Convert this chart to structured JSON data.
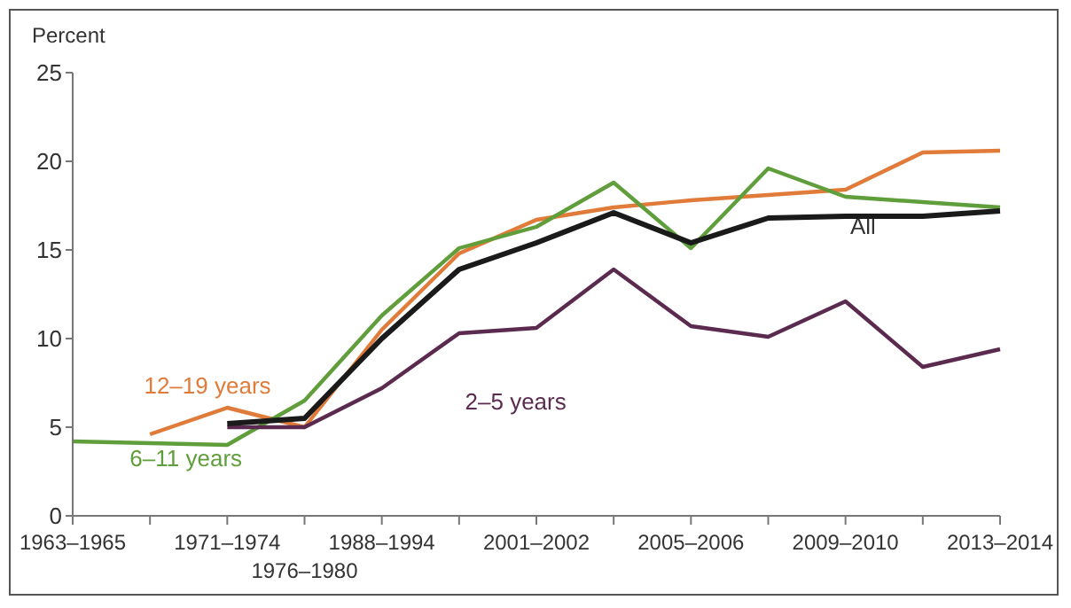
{
  "chart_data": {
    "type": "line",
    "ylabel": "Percent",
    "categories": [
      "1963–1965",
      null,
      "1971–1974",
      "1976–1980",
      "1988–1994",
      null,
      "2001–2002",
      null,
      "2005–2006",
      null,
      "2009–2010",
      null,
      "2013–2014"
    ],
    "ylim": [
      0,
      25
    ],
    "yticks": [
      0,
      5,
      10,
      15,
      20,
      25
    ],
    "grid": false,
    "legend": false,
    "marker": "none",
    "line_style": "solid",
    "series": [
      {
        "name": "12–19 years",
        "color": "#e07b39",
        "values": [
          null,
          4.6,
          6.1,
          5.0,
          10.5,
          14.8,
          16.7,
          17.4,
          17.8,
          18.1,
          18.4,
          20.5,
          20.6
        ]
      },
      {
        "name": "6–11 years",
        "color": "#5f9e3a",
        "values": [
          4.2,
          null,
          4.0,
          6.5,
          11.3,
          15.1,
          16.3,
          18.8,
          15.1,
          19.6,
          18.0,
          17.7,
          17.4
        ]
      },
      {
        "name": "2–5 years",
        "color": "#5b2a4f",
        "values": [
          null,
          null,
          5.0,
          5.0,
          7.2,
          10.3,
          10.6,
          13.9,
          10.7,
          10.1,
          12.1,
          8.4,
          9.4
        ]
      },
      {
        "name": "All",
        "color": "#1a1a1a",
        "values": [
          null,
          null,
          5.2,
          5.5,
          10.0,
          13.9,
          15.4,
          17.1,
          15.4,
          16.8,
          16.9,
          16.9,
          17.2
        ]
      }
    ]
  }
}
